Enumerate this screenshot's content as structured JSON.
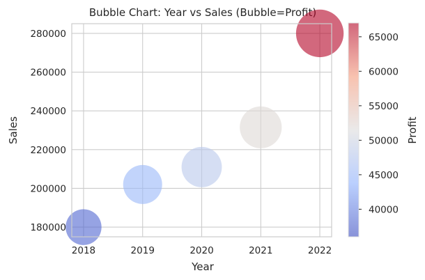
{
  "chart_data": {
    "type": "scatter",
    "title": "Bubble Chart: Year vs Sales (Bubble=Profit)",
    "xlabel": "Year",
    "ylabel": "Sales",
    "x": [
      2018,
      2019,
      2020,
      2021,
      2022
    ],
    "y": [
      180000,
      202000,
      211000,
      231500,
      280000
    ],
    "size": [
      38000,
      45000,
      48000,
      52000,
      67000
    ],
    "xticks": [
      "2018",
      "2019",
      "2020",
      "2021",
      "2022"
    ],
    "yticks": [
      "180000",
      "200000",
      "220000",
      "240000",
      "260000",
      "280000"
    ],
    "xlim": [
      2017.8,
      2022.2
    ],
    "ylim": [
      175000,
      285000
    ],
    "grid": true,
    "colorbar": {
      "label": "Profit",
      "colormap": "coolwarm",
      "range": [
        36000,
        67000
      ],
      "ticks": [
        "40000",
        "45000",
        "50000",
        "55000",
        "60000",
        "65000"
      ]
    },
    "colors": {
      "cool": "#3b4cc0",
      "light_blue": "#8db0fe",
      "neutral": "#dddcdc",
      "light_red": "#f49a7b",
      "warm": "#b40426",
      "grid": "#cccccc",
      "frame": "#cccccc"
    }
  }
}
